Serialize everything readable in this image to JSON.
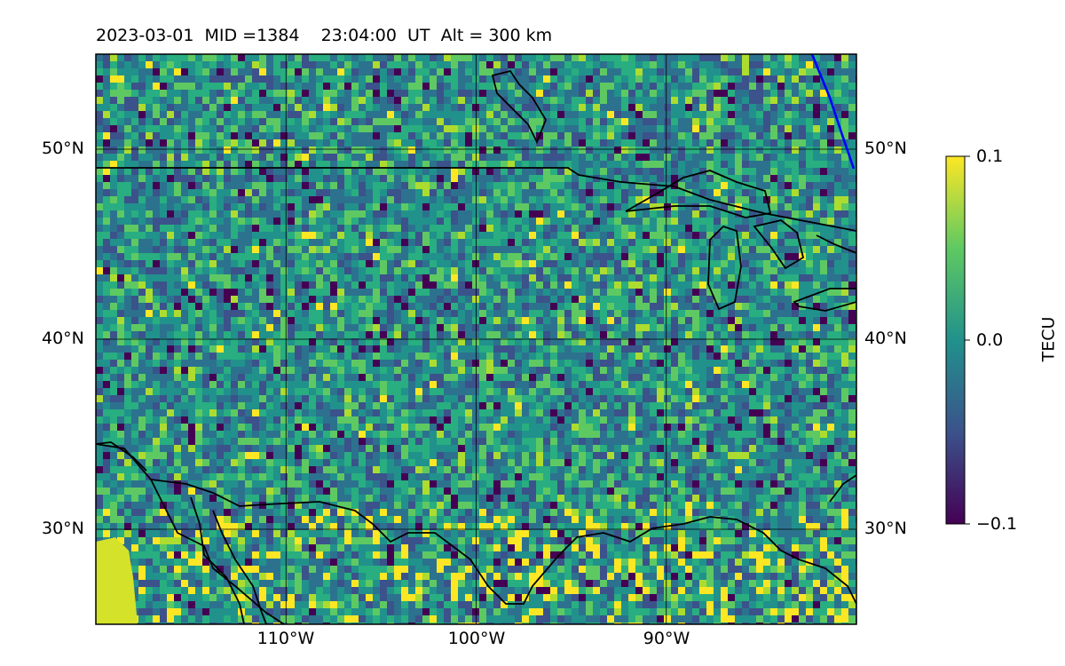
{
  "title": "2023-03-01  MID =1384    23:04:00  UT  Alt = 300 km",
  "map": {
    "lat_labels": [
      "50°N",
      "40°N",
      "30°N"
    ],
    "lon_labels": [
      "110°W",
      "100°W",
      "90°W"
    ],
    "lon_range": [
      -120,
      -80
    ],
    "lat_range": [
      25,
      55
    ]
  },
  "colorbar": {
    "title": "TECU",
    "colormap": "viridis",
    "ticks": [
      "0.1",
      "0.0",
      "−0.1"
    ],
    "range": [
      -0.1,
      0.1
    ]
  },
  "colors": {
    "background_field": "#2a8a8a",
    "coastline": "#000000",
    "terminator_line": "#0000ff",
    "gridline": "#000000"
  }
}
